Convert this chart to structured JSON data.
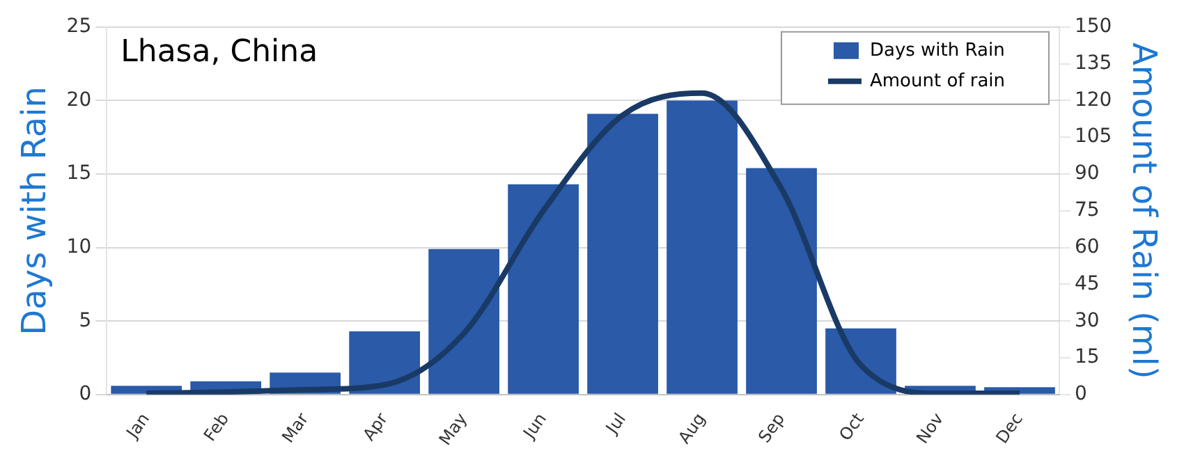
{
  "chart_data": {
    "type": "bar",
    "title": "Lhasa, China",
    "ylabel": "Days with Rain",
    "y2label": "Amount of Rain (ml)",
    "categories": [
      "Jan",
      "Feb",
      "Mar",
      "Apr",
      "May",
      "Jun",
      "Jul",
      "Aug",
      "Sep",
      "Oct",
      "Nov",
      "Dec"
    ],
    "series": [
      {
        "name": "Days with Rain",
        "color": "#2a5aa8",
        "values": [
          0.6,
          0.9,
          1.5,
          4.3,
          9.9,
          14.3,
          19.1,
          20,
          15.4,
          4.5,
          0.6,
          0.5
        ]
      },
      {
        "name": "Amount of rain",
        "type": "line",
        "axis": "y2",
        "color": "#1a3a66",
        "values": [
          0.5,
          1,
          2,
          4,
          25,
          75,
          114,
          123,
          84,
          12,
          0.5,
          0.5
        ]
      }
    ],
    "ylim": [
      0,
      25
    ],
    "yticks": [
      0,
      5,
      10,
      15,
      20,
      25
    ],
    "y2lim": [
      0,
      150
    ],
    "y2ticks": [
      0,
      15,
      30,
      45,
      60,
      75,
      90,
      105,
      120,
      135,
      150
    ],
    "grid": "y",
    "legend": "top right",
    "marker": "none"
  }
}
